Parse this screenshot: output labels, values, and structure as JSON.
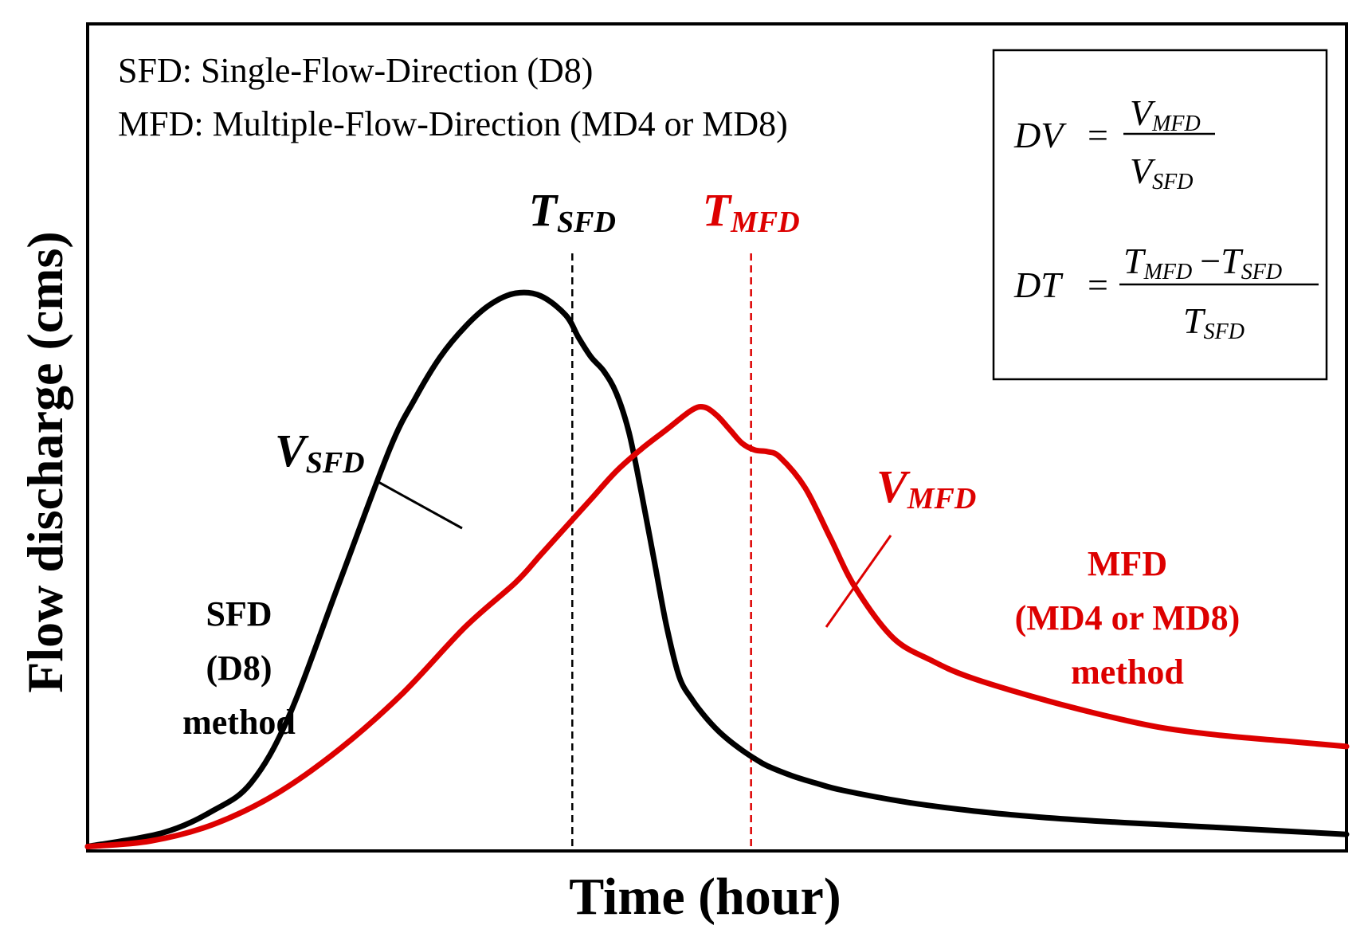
{
  "chart_data": {
    "type": "line",
    "title": "",
    "xlabel": "Time (hour)",
    "ylabel": "Flow discharge (cms)",
    "xlim": [
      0,
      100
    ],
    "ylim": [
      0,
      100
    ],
    "grid": false,
    "ticks_shown": false,
    "definitions": [
      "SFD: Single-Flow-Direction (D8)",
      "MFD: Multiple-Flow-Direction (MD4 or MD8)"
    ],
    "series": [
      {
        "name": "SFD (D8) method",
        "label_lines": [
          "SFD",
          "(D8)",
          "method"
        ],
        "color": "#000000",
        "x": [
          0,
          6,
          10,
          13,
          16,
          20,
          24,
          26,
          28,
          30,
          32,
          34,
          36,
          38,
          39,
          40,
          41,
          42,
          43,
          44,
          45,
          46,
          47,
          48,
          49,
          50,
          51,
          52,
          53,
          54,
          56,
          58,
          60,
          65,
          70,
          75,
          80,
          85,
          90,
          95,
          100
        ],
        "y": [
          0.5,
          3,
          7,
          12,
          24,
          48,
          72,
          81,
          88.5,
          94,
          98,
          100,
          99.5,
          96,
          92,
          88.5,
          86,
          82,
          75,
          64,
          52,
          40,
          31,
          27,
          24,
          21.5,
          19.5,
          17.8,
          16.3,
          15,
          13.2,
          11.8,
          10.6,
          8.5,
          7,
          5.9,
          5.1,
          4.5,
          3.9,
          3.3,
          2.7
        ]
      },
      {
        "name": "MFD (MD4 or MD8) method",
        "label_lines": [
          "MFD",
          "(MD4 or MD8)",
          "method"
        ],
        "color": "#dd0000",
        "x": [
          0,
          5,
          10,
          15,
          20,
          25,
          30,
          34,
          36,
          38,
          40,
          42,
          44,
          46,
          48,
          49,
          50,
          51,
          52,
          53,
          54,
          55,
          57,
          59,
          61,
          64,
          67,
          70,
          75,
          80,
          85,
          90,
          95,
          100
        ],
        "y": [
          0.5,
          1.5,
          4.5,
          10,
          18,
          28,
          40,
          48,
          53,
          58,
          63,
          68,
          72,
          75.5,
          79,
          79.5,
          78,
          75.5,
          73,
          71.8,
          71.5,
          70.5,
          65,
          56,
          47,
          38,
          34,
          31,
          27.5,
          24.5,
          22,
          20.5,
          19.5,
          18.5
        ]
      }
    ],
    "annotations": [
      {
        "id": "t-sfd",
        "main": "T",
        "sub": "SFD",
        "color": "#000000",
        "x": 38.5
      },
      {
        "id": "t-mfd",
        "main": "T",
        "sub": "MFD",
        "color": "#dd0000",
        "x": 52.7
      },
      {
        "id": "v-sfd",
        "main": "V",
        "sub": "SFD",
        "color": "#000000"
      },
      {
        "id": "v-mfd",
        "main": "V",
        "sub": "MFD",
        "color": "#dd0000"
      }
    ],
    "formula_box": {
      "dv": {
        "lhs": "DV",
        "eq": "=",
        "num_main": "V",
        "num_sub": "MFD",
        "den_main": "V",
        "den_sub": "SFD"
      },
      "dt": {
        "lhs": "DT",
        "eq": "=",
        "num_a_main": "T",
        "num_a_sub": "MFD",
        "minus": "−",
        "num_b_main": "T",
        "num_b_sub": "SFD",
        "den_main": "T",
        "den_sub": "SFD"
      }
    }
  }
}
